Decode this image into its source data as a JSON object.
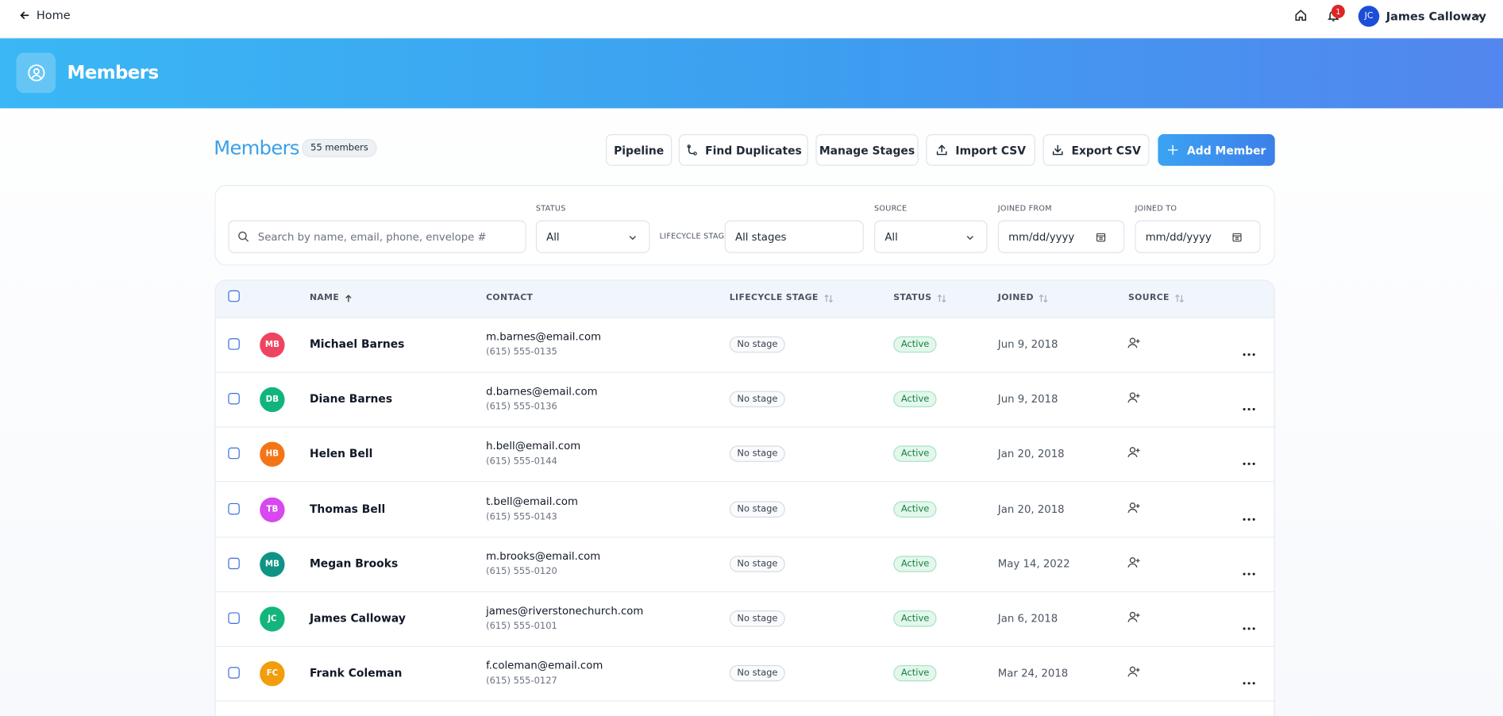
{
  "topbar": {
    "back_label": "Home",
    "notification_count": "1",
    "user_initials": "JC",
    "user_name": "James Calloway"
  },
  "header": {
    "title": "Members"
  },
  "page": {
    "title": "Members",
    "member_count": "55 members",
    "buttons": [
      "Pipeline",
      "Find Duplicates",
      "Manage Stages",
      "Import CSV",
      "Export CSV",
      "Add Member"
    ]
  },
  "filters": {
    "search_placeholder": "Search by name, email, phone, envelope #",
    "status": {
      "label": "STATUS",
      "value": "All"
    },
    "lifecycle": {
      "label": "LIFECYCLE STAGE",
      "value": "All stages"
    },
    "source": {
      "label": "SOURCE",
      "value": "All"
    },
    "joined_from": {
      "label": "JOINED FROM",
      "placeholder": "mm/dd/yyyy"
    },
    "joined_to": {
      "label": "JOINED TO",
      "placeholder": "mm/dd/yyyy"
    }
  },
  "table": {
    "columns": [
      "NAME",
      "CONTACT",
      "LIFECYCLE STAGE",
      "STATUS",
      "JOINED",
      "SOURCE"
    ],
    "rows": [
      {
        "initials": "MB",
        "avatar_color": "#ef4461",
        "name": "Michael Barnes",
        "email": "m.barnes@email.com",
        "phone": "(615) 555-0135",
        "stage": "No stage",
        "status": "Active",
        "joined": "Jun 9, 2018"
      },
      {
        "initials": "DB",
        "avatar_color": "#12b47e",
        "name": "Diane Barnes",
        "email": "d.barnes@email.com",
        "phone": "(615) 555-0136",
        "stage": "No stage",
        "status": "Active",
        "joined": "Jun 9, 2018"
      },
      {
        "initials": "HB",
        "avatar_color": "#f47516",
        "name": "Helen Bell",
        "email": "h.bell@email.com",
        "phone": "(615) 555-0144",
        "stage": "No stage",
        "status": "Active",
        "joined": "Jan 20, 2018"
      },
      {
        "initials": "TB",
        "avatar_color": "#d748ee",
        "name": "Thomas Bell",
        "email": "t.bell@email.com",
        "phone": "(615) 555-0143",
        "stage": "No stage",
        "status": "Active",
        "joined": "Jan 20, 2018"
      },
      {
        "initials": "MB",
        "avatar_color": "#0e9384",
        "name": "Megan Brooks",
        "email": "m.brooks@email.com",
        "phone": "(615) 555-0120",
        "stage": "No stage",
        "status": "Active",
        "joined": "May 14, 2022"
      },
      {
        "initials": "JC",
        "avatar_color": "#13b57c",
        "name": "James Calloway",
        "email": "james@riverstonechurch.com",
        "phone": "(615) 555-0101",
        "stage": "No stage",
        "status": "Active",
        "joined": "Jan 6, 2018"
      },
      {
        "initials": "FC",
        "avatar_color": "#f39c0c",
        "name": "Frank Coleman",
        "email": "f.coleman@email.com",
        "phone": "(615) 555-0127",
        "stage": "No stage",
        "status": "Active",
        "joined": "Mar 24, 2018"
      }
    ]
  }
}
